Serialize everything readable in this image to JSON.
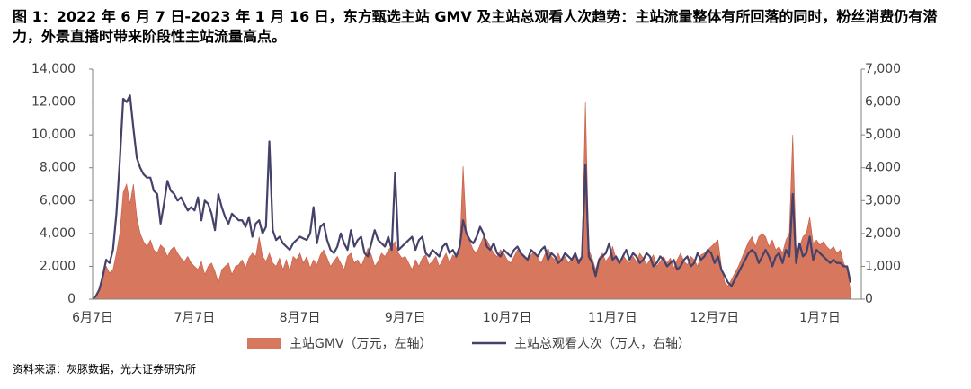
{
  "chart_data": {
    "type": "area-line",
    "title": "图 1：2022 年 6 月 7 日-2023 年 1 月 16 日，东方甄选主站 GMV 及主站总观看人次趋势：主站流量整体有所回落的同时，粉丝消费仍有潜力，外景直播时带来阶段性主站流量高点。",
    "source": "资料来源：灰豚数据，光大证券研究所",
    "categories": [
      "6月7日",
      null,
      null,
      null,
      null,
      null,
      null,
      null,
      null,
      null,
      null,
      null,
      null,
      null,
      null,
      null,
      null,
      null,
      null,
      null,
      null,
      null,
      null,
      null,
      null,
      null,
      null,
      null,
      null,
      null,
      "7月7日",
      null,
      null,
      null,
      null,
      null,
      null,
      null,
      null,
      null,
      null,
      null,
      null,
      null,
      null,
      null,
      null,
      null,
      null,
      null,
      null,
      null,
      null,
      null,
      null,
      null,
      null,
      null,
      null,
      null,
      null,
      "8月7日",
      null,
      null,
      null,
      null,
      null,
      null,
      null,
      null,
      null,
      null,
      null,
      null,
      null,
      null,
      null,
      null,
      null,
      null,
      null,
      null,
      null,
      null,
      null,
      null,
      null,
      null,
      null,
      null,
      null,
      null,
      "9月7日",
      null,
      null,
      null,
      null,
      null,
      null,
      null,
      null,
      null,
      null,
      null,
      null,
      null,
      null,
      null,
      null,
      null,
      null,
      null,
      null,
      null,
      null,
      null,
      null,
      null,
      null,
      null,
      null,
      null,
      "10月7日",
      null,
      null,
      null,
      null,
      null,
      null,
      null,
      null,
      null,
      null,
      null,
      null,
      null,
      null,
      null,
      null,
      null,
      null,
      null,
      null,
      null,
      null,
      null,
      null,
      null,
      null,
      null,
      null,
      null,
      null,
      "11月7日",
      null,
      null,
      null,
      null,
      null,
      null,
      null,
      null,
      null,
      null,
      null,
      null,
      null,
      null,
      null,
      null,
      null,
      null,
      null,
      null,
      null,
      null,
      null,
      null,
      null,
      null,
      null,
      null,
      null,
      "12月7日",
      null,
      null,
      null,
      null,
      null,
      null,
      null,
      null,
      null,
      null,
      null,
      null,
      null,
      null,
      null,
      null,
      null,
      null,
      null,
      null,
      null,
      null,
      null,
      null,
      null,
      null,
      null,
      null,
      null,
      null,
      "1月7日",
      null,
      null,
      null,
      null,
      null,
      null,
      null,
      null,
      null
    ],
    "series": [
      {
        "name": "主站GMV（万元，左轴）",
        "color": "#d6775e",
        "kind": "area",
        "axis": "y",
        "values": [
          0,
          200,
          500,
          1500,
          2000,
          1600,
          1800,
          2800,
          4000,
          6500,
          7000,
          5800,
          7000,
          5000,
          4000,
          3500,
          3200,
          3600,
          3000,
          2800,
          3300,
          3100,
          2600,
          3000,
          3200,
          2800,
          2500,
          2300,
          2600,
          2200,
          2000,
          1800,
          2300,
          1500,
          2000,
          2200,
          1700,
          1000,
          1800,
          2000,
          2200,
          1500,
          2000,
          2100,
          2400,
          1900,
          2500,
          2800,
          2600,
          3800,
          2600,
          2300,
          2800,
          2200,
          2000,
          2500,
          1800,
          2400,
          1700,
          2600,
          2400,
          2800,
          2200,
          2600,
          1900,
          2400,
          2100,
          2700,
          3000,
          2500,
          2000,
          2300,
          2600,
          2200,
          1800,
          2600,
          2800,
          2200,
          2400,
          2000,
          2500,
          3100,
          2700,
          2000,
          2300,
          2800,
          2600,
          3000,
          3200,
          3500,
          2800,
          2500,
          2600,
          2200,
          1800,
          2400,
          2000,
          2500,
          2700,
          2100,
          2300,
          2600,
          2000,
          2400,
          2800,
          2200,
          2700,
          2500,
          3000,
          8100,
          4000,
          3500,
          3000,
          2800,
          3300,
          3800,
          3600,
          3200,
          2800,
          2600,
          3000,
          2800,
          2400,
          2200,
          2600,
          3000,
          2800,
          2500,
          2300,
          2700,
          2900,
          2500,
          2200,
          2700,
          3100,
          2600,
          2400,
          2800,
          2300,
          2600,
          2200,
          2500,
          2800,
          2400,
          2600,
          12000,
          3000,
          2500,
          1800,
          2500,
          2800,
          2300,
          2600,
          3200,
          2500,
          2100,
          2700,
          2400,
          2200,
          2600,
          2300,
          2800,
          2500,
          2100,
          2400,
          2700,
          2000,
          2300,
          2600,
          2200,
          2500,
          1900,
          2400,
          2800,
          2300,
          2100,
          2600,
          2400,
          2000,
          2700,
          2800,
          3000,
          3200,
          3400,
          3600,
          2000,
          1000,
          800,
          1200,
          1600,
          2000,
          2500,
          3000,
          3500,
          3800,
          3200,
          3800,
          4000,
          3800,
          3200,
          3600,
          3000,
          3200,
          2800,
          3600,
          4000,
          10000,
          3000,
          3200,
          3800,
          4000,
          5000,
          3400,
          3600,
          3300,
          3500,
          3200,
          3000,
          3200,
          2800,
          3000,
          2200,
          1800,
          500
        ]
      },
      {
        "name": "主站总观看人次（万人，右轴）",
        "color": "#44426a",
        "kind": "line",
        "axis": "y2",
        "values": [
          0,
          100,
          300,
          700,
          1200,
          1100,
          1500,
          2600,
          4200,
          6100,
          6000,
          6200,
          5200,
          4300,
          4000,
          3800,
          3700,
          3700,
          3300,
          3200,
          2300,
          2900,
          3600,
          3300,
          3200,
          3000,
          3100,
          2900,
          2700,
          2800,
          2700,
          3100,
          2400,
          3000,
          2900,
          2600,
          2100,
          3200,
          2800,
          2500,
          2300,
          2600,
          2500,
          2400,
          2400,
          2200,
          2500,
          1900,
          2300,
          2400,
          2000,
          2200,
          4800,
          2100,
          1800,
          1900,
          1700,
          1600,
          1500,
          1700,
          1800,
          1900,
          1850,
          1800,
          2000,
          2800,
          1700,
          2200,
          2300,
          1800,
          1500,
          1400,
          1600,
          2000,
          1700,
          1500,
          2100,
          1600,
          1800,
          1900,
          1400,
          1300,
          1700,
          2100,
          1800,
          1700,
          1600,
          1900,
          1500,
          3850,
          1500,
          1600,
          1700,
          1800,
          1900,
          1500,
          1800,
          1900,
          1400,
          1300,
          1500,
          1400,
          1300,
          1600,
          1700,
          1400,
          1500,
          1300,
          1600,
          2400,
          2000,
          1800,
          1700,
          1900,
          2200,
          2000,
          1600,
          1500,
          1700,
          1400,
          1300,
          1500,
          1400,
          1300,
          1500,
          1600,
          1400,
          1300,
          1200,
          1500,
          1400,
          1300,
          1500,
          1600,
          1200,
          1400,
          1300,
          1100,
          1200,
          1400,
          1300,
          1200,
          1400,
          1100,
          1300,
          4100,
          1300,
          1100,
          700,
          1200,
          1300,
          1400,
          1700,
          1200,
          1300,
          1100,
          1300,
          1500,
          1200,
          1400,
          1300,
          1100,
          1200,
          1400,
          1300,
          1000,
          1100,
          1300,
          1200,
          1000,
          1100,
          1200,
          900,
          1000,
          1200,
          1300,
          1000,
          1100,
          1400,
          1200,
          1300,
          1500,
          1400,
          1100,
          1300,
          900,
          700,
          500,
          400,
          600,
          800,
          1000,
          1200,
          1400,
          1500,
          1400,
          1100,
          1300,
          1500,
          1300,
          1000,
          1300,
          1400,
          1100,
          1500,
          1300,
          3200,
          1100,
          1700,
          1300,
          1400,
          1900,
          1200,
          1500,
          1400,
          1300,
          1200,
          1100,
          1200,
          1100,
          1100,
          1000,
          1000,
          500
        ]
      }
    ],
    "ylim": [
      0,
      14000
    ],
    "yticks": [
      0,
      {
        "value": 2000,
        "label": "2,000"
      },
      {
        "value": 4000,
        "label": "4,000"
      },
      {
        "value": 6000,
        "label": "6,000"
      },
      {
        "value": 8000,
        "label": "8,000"
      },
      {
        "value": 10000,
        "label": "10,000"
      },
      {
        "value": 12000,
        "label": "12,000"
      },
      {
        "value": 14000,
        "label": "14,000"
      }
    ],
    "y2lim": [
      0,
      7000
    ],
    "y2ticks": [
      0,
      {
        "value": 1000,
        "label": "1,000"
      },
      {
        "value": 2000,
        "label": "2,000"
      },
      {
        "value": 3000,
        "label": "3,000"
      },
      {
        "value": 4000,
        "label": "4,000"
      },
      {
        "value": 5000,
        "label": "5,000"
      },
      {
        "value": 6000,
        "label": "6,000"
      },
      {
        "value": 7000,
        "label": "7,000"
      }
    ]
  }
}
